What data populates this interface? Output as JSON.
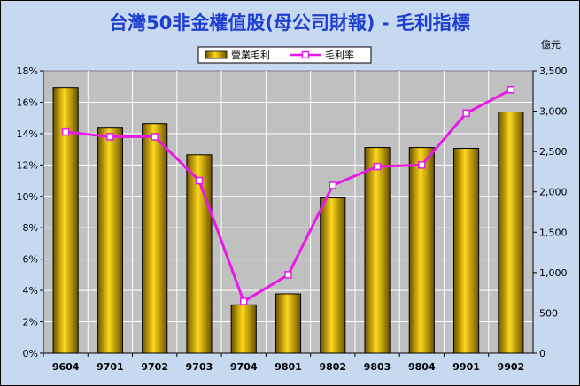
{
  "chart_data": {
    "type": "bar",
    "title": "台灣50非金權值股(母公司財報) - 毛利指標",
    "xlabel": "",
    "ylabel": "",
    "y2label": "億元",
    "categories": [
      "9604",
      "9701",
      "9702",
      "9703",
      "9704",
      "9801",
      "9802",
      "9803",
      "9804",
      "9901",
      "9902"
    ],
    "series": [
      {
        "name": "營業毛利",
        "type": "bar",
        "axis": "right",
        "color": "#c8a000",
        "values": [
          3295,
          2790,
          2845,
          2460,
          600,
          735,
          1925,
          2550,
          2550,
          2540,
          2990
        ]
      },
      {
        "name": "毛利率",
        "type": "line",
        "axis": "left",
        "unit": "%",
        "color": "#e619e6",
        "values": [
          14.1,
          13.8,
          13.8,
          11.0,
          3.3,
          5.0,
          10.7,
          11.9,
          12.0,
          15.3,
          16.8
        ]
      }
    ],
    "ylim_left": [
      0,
      18
    ],
    "yticks_left": [
      "0%",
      "2%",
      "4%",
      "6%",
      "8%",
      "10%",
      "12%",
      "14%",
      "16%",
      "18%"
    ],
    "ylim_right": [
      0,
      3500
    ],
    "yticks_right": [
      "0",
      "500",
      "1,000",
      "1,500",
      "2,000",
      "2,500",
      "3,000",
      "3,500"
    ],
    "grid": true,
    "legend_position": "top-center"
  },
  "colors": {
    "background": "#c6d9f1",
    "plot_area": "#c0c0c0",
    "title": "#1f3fd1",
    "grid": "#ffffff"
  }
}
